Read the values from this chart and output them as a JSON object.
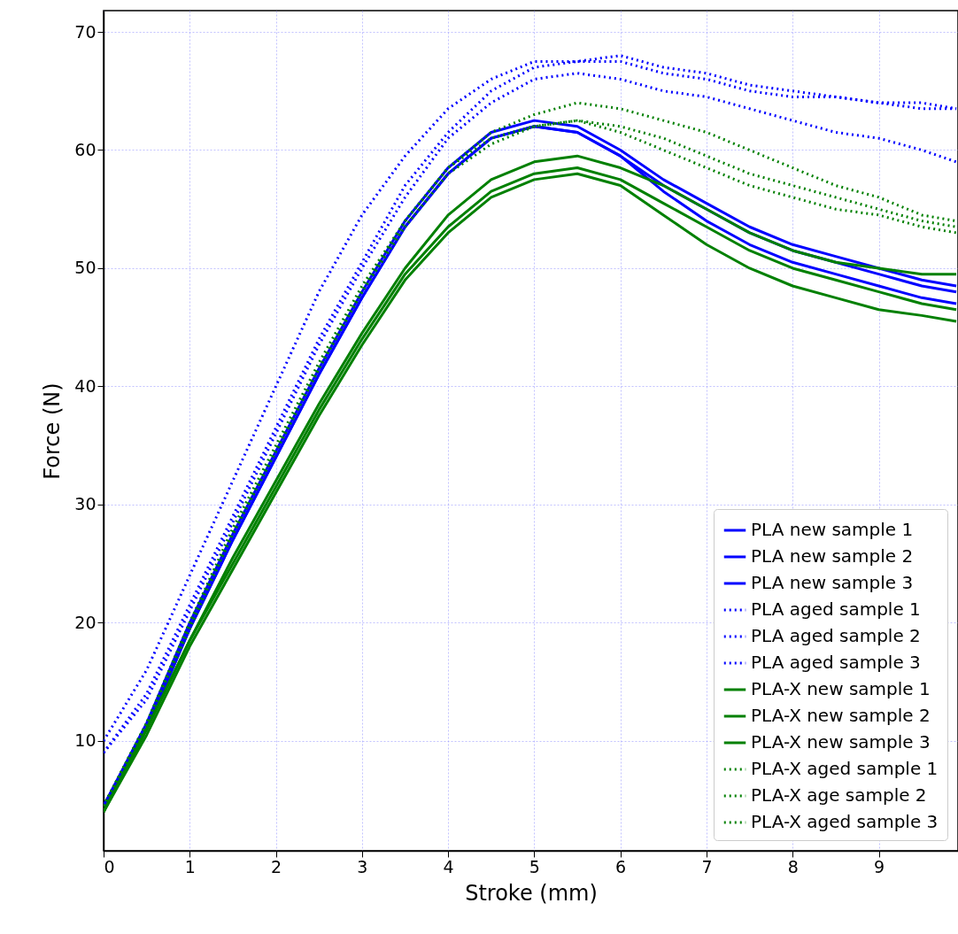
{
  "chart_data": {
    "type": "line",
    "xlabel": "Stroke (mm)",
    "ylabel": "Force (N)",
    "xlim": [
      0,
      9.92
    ],
    "ylim": [
      0.7,
      71.8
    ],
    "xticks": [
      0,
      1,
      2,
      3,
      4,
      5,
      6,
      7,
      8,
      9
    ],
    "yticks": [
      10,
      20,
      30,
      40,
      50,
      60,
      70
    ],
    "grid": true,
    "legend": "bottom right",
    "x": [
      0,
      0.5,
      1,
      1.5,
      2,
      2.5,
      3,
      3.5,
      4,
      4.5,
      5,
      5.5,
      6,
      6.5,
      7,
      7.5,
      8,
      8.5,
      9,
      9.5,
      9.9
    ],
    "series": [
      {
        "name": "PLA new sample 1",
        "color": "#0000ff",
        "line_style": "solid",
        "values": [
          4.5,
          11,
          19.5,
          27,
          34,
          41,
          47.5,
          53.5,
          58,
          61,
          62,
          61.5,
          59.5,
          57,
          55,
          53,
          51.5,
          50.5,
          49.5,
          48.5,
          48
        ]
      },
      {
        "name": "PLA new sample 2",
        "color": "#0000ff",
        "line_style": "solid",
        "values": [
          4.5,
          11.5,
          20,
          27.5,
          34.5,
          41.5,
          48,
          54,
          58.5,
          61.5,
          62.5,
          62,
          60,
          57.5,
          55.5,
          53.5,
          52,
          51,
          50,
          49,
          48.5
        ]
      },
      {
        "name": "PLA new sample 3",
        "color": "#0000ff",
        "line_style": "solid",
        "values": [
          4.5,
          11,
          19.5,
          27,
          34,
          41,
          47.5,
          53.5,
          58,
          61,
          62,
          61.5,
          59.5,
          56.5,
          54,
          52,
          50.5,
          49.5,
          48.5,
          47.5,
          47
        ]
      },
      {
        "name": "PLA aged sample 1",
        "color": "#0000ff",
        "line_style": "dotted",
        "values": [
          10,
          16,
          24,
          32,
          40,
          48,
          54.5,
          59.5,
          63.5,
          66,
          67.5,
          67.5,
          67.5,
          66.5,
          66,
          65,
          64.5,
          64.5,
          64,
          63.5,
          63.5
        ]
      },
      {
        "name": "PLA aged sample 2",
        "color": "#0000ff",
        "line_style": "dotted",
        "values": [
          9,
          14,
          21.5,
          29,
          36.5,
          44,
          50.5,
          57,
          61.5,
          65,
          67,
          67.5,
          68,
          67,
          66.5,
          65.5,
          65,
          64.5,
          64,
          64,
          63.5
        ]
      },
      {
        "name": "PLA aged sample 3",
        "color": "#0000ff",
        "line_style": "dotted",
        "values": [
          9,
          13.5,
          21,
          28.5,
          36,
          43.5,
          50,
          56,
          61,
          64,
          66,
          66.5,
          66,
          65,
          64.5,
          63.5,
          62.5,
          61.5,
          61,
          60,
          59
        ]
      },
      {
        "name": "PLA-X new sample 1",
        "color": "#008000",
        "line_style": "solid",
        "values": [
          4,
          11,
          18.5,
          25,
          31.5,
          38,
          44,
          49.5,
          53.5,
          56.5,
          58,
          58.5,
          57.5,
          55.5,
          53.5,
          51.5,
          50,
          49,
          48,
          47,
          46.5
        ]
      },
      {
        "name": "PLA-X new sample 2",
        "color": "#008000",
        "line_style": "solid",
        "values": [
          4,
          11,
          18.5,
          25.5,
          32,
          38.5,
          44.5,
          50,
          54.5,
          57.5,
          59,
          59.5,
          58.5,
          57,
          55,
          53,
          51.5,
          50.5,
          50,
          49.5,
          49.5
        ]
      },
      {
        "name": "PLA-X new sample 3",
        "color": "#008000",
        "line_style": "solid",
        "values": [
          4,
          10.5,
          18,
          24.5,
          31,
          37.5,
          43.5,
          49,
          53,
          56,
          57.5,
          58,
          57,
          54.5,
          52,
          50,
          48.5,
          47.5,
          46.5,
          46,
          45.5
        ]
      },
      {
        "name": "PLA-X aged sample 1",
        "color": "#008000",
        "line_style": "dotted",
        "values": [
          4.5,
          11.5,
          20,
          28,
          35,
          42,
          48.5,
          54,
          58.5,
          61.5,
          63,
          64,
          63.5,
          62.5,
          61.5,
          60,
          58.5,
          57,
          56,
          54.5,
          54
        ]
      },
      {
        "name": "PLA-X age sample 2",
        "color": "#008000",
        "line_style": "dotted",
        "values": [
          4.5,
          11.5,
          20,
          27.5,
          34.5,
          41.5,
          48,
          54,
          58.5,
          61,
          62,
          62.5,
          62,
          61,
          59.5,
          58,
          57,
          56,
          55,
          54,
          53.5
        ]
      },
      {
        "name": "PLA-X aged sample 3",
        "color": "#008000",
        "line_style": "dotted",
        "values": [
          4.5,
          11.5,
          19.5,
          27.5,
          34.5,
          41.5,
          48,
          53.5,
          58,
          60.5,
          62,
          62.5,
          61.5,
          60,
          58.5,
          57,
          56,
          55,
          54.5,
          53.5,
          53
        ]
      }
    ]
  }
}
